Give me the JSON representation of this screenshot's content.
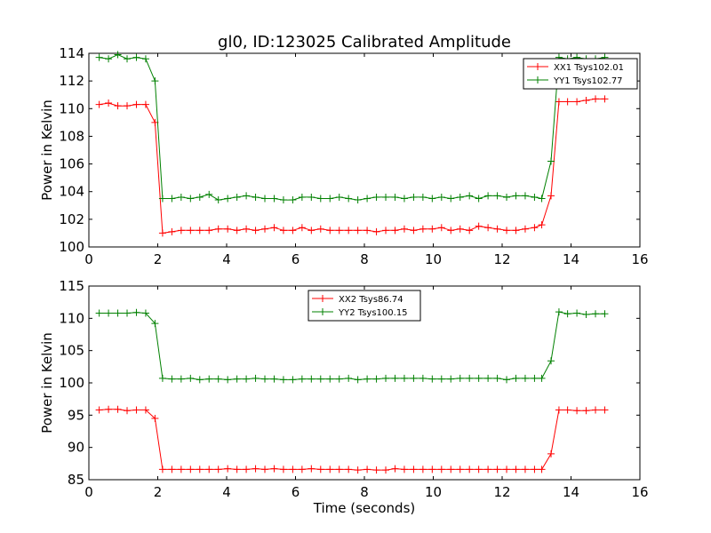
{
  "figure_title": "gl0, ID:123025 Calibrated Amplitude",
  "chart_data": [
    {
      "type": "line",
      "title": "gl0, ID:123025 Calibrated Amplitude",
      "xlabel": "",
      "ylabel": "Power in Kelvin",
      "xlim": [
        0,
        16
      ],
      "ylim": [
        100,
        114
      ],
      "xticks": [
        "0",
        "2",
        "4",
        "6",
        "8",
        "10",
        "12",
        "14",
        "16"
      ],
      "yticks": [
        "100",
        "102",
        "104",
        "106",
        "108",
        "110",
        "112",
        "114"
      ],
      "legend_position": "top-right",
      "grid": false,
      "x": [
        0.3,
        0.57,
        0.84,
        1.11,
        1.38,
        1.65,
        1.92,
        2.14,
        2.41,
        2.68,
        2.95,
        3.22,
        3.49,
        3.76,
        4.03,
        4.3,
        4.57,
        4.84,
        5.11,
        5.38,
        5.65,
        5.92,
        6.19,
        6.46,
        6.73,
        7.0,
        7.27,
        7.54,
        7.81,
        8.08,
        8.35,
        8.62,
        8.89,
        9.16,
        9.43,
        9.7,
        9.97,
        10.24,
        10.51,
        10.78,
        11.05,
        11.32,
        11.59,
        11.86,
        12.13,
        12.4,
        12.67,
        12.94,
        13.15,
        13.42,
        13.65,
        13.9,
        14.17,
        14.44,
        14.71,
        14.98
      ],
      "series": [
        {
          "name": "XX1 Tsys102.01",
          "color": "#ff0000",
          "values": [
            110.3,
            110.4,
            110.2,
            110.2,
            110.3,
            110.3,
            109.0,
            101.0,
            101.1,
            101.2,
            101.2,
            101.2,
            101.2,
            101.3,
            101.3,
            101.2,
            101.3,
            101.2,
            101.3,
            101.4,
            101.2,
            101.2,
            101.4,
            101.2,
            101.3,
            101.2,
            101.2,
            101.2,
            101.2,
            101.2,
            101.1,
            101.2,
            101.2,
            101.3,
            101.2,
            101.3,
            101.3,
            101.4,
            101.2,
            101.3,
            101.2,
            101.5,
            101.4,
            101.3,
            101.2,
            101.2,
            101.3,
            101.4,
            101.6,
            103.7,
            110.5,
            110.5,
            110.5,
            110.6,
            110.7,
            110.7
          ]
        },
        {
          "name": "YY1 Tsys102.77",
          "color": "#008000",
          "values": [
            113.7,
            113.6,
            113.9,
            113.6,
            113.7,
            113.6,
            112.0,
            103.5,
            103.5,
            103.6,
            103.5,
            103.6,
            103.8,
            103.4,
            103.5,
            103.6,
            103.7,
            103.6,
            103.5,
            103.5,
            103.4,
            103.4,
            103.6,
            103.6,
            103.5,
            103.5,
            103.6,
            103.5,
            103.4,
            103.5,
            103.6,
            103.6,
            103.6,
            103.5,
            103.6,
            103.6,
            103.5,
            103.6,
            103.5,
            103.6,
            103.7,
            103.5,
            103.7,
            103.7,
            103.6,
            103.7,
            103.7,
            103.6,
            103.5,
            106.2,
            113.7,
            113.6,
            113.7,
            113.6,
            113.6,
            113.7
          ]
        }
      ]
    },
    {
      "type": "line",
      "title": "",
      "xlabel": "Time (seconds)",
      "ylabel": "Power in Kelvin",
      "xlim": [
        0,
        16
      ],
      "ylim": [
        85,
        115
      ],
      "xticks": [
        "0",
        "2",
        "4",
        "6",
        "8",
        "10",
        "12",
        "14",
        "16"
      ],
      "yticks": [
        "85",
        "90",
        "95",
        "100",
        "105",
        "110",
        "115"
      ],
      "legend_position": "upper-center",
      "grid": false,
      "x": [
        0.3,
        0.57,
        0.84,
        1.11,
        1.38,
        1.65,
        1.92,
        2.14,
        2.41,
        2.68,
        2.95,
        3.22,
        3.49,
        3.76,
        4.03,
        4.3,
        4.57,
        4.84,
        5.11,
        5.38,
        5.65,
        5.92,
        6.19,
        6.46,
        6.73,
        7.0,
        7.27,
        7.54,
        7.81,
        8.08,
        8.35,
        8.62,
        8.89,
        9.16,
        9.43,
        9.7,
        9.97,
        10.24,
        10.51,
        10.78,
        11.05,
        11.32,
        11.59,
        11.86,
        12.13,
        12.4,
        12.67,
        12.94,
        13.15,
        13.42,
        13.65,
        13.9,
        14.17,
        14.44,
        14.71,
        14.98
      ],
      "series": [
        {
          "name": "XX2 Tsys86.74",
          "color": "#ff0000",
          "values": [
            95.8,
            95.9,
            95.9,
            95.7,
            95.8,
            95.8,
            94.5,
            86.6,
            86.6,
            86.6,
            86.6,
            86.6,
            86.6,
            86.6,
            86.7,
            86.6,
            86.6,
            86.7,
            86.6,
            86.7,
            86.6,
            86.6,
            86.6,
            86.7,
            86.6,
            86.6,
            86.6,
            86.6,
            86.5,
            86.6,
            86.5,
            86.5,
            86.7,
            86.6,
            86.6,
            86.6,
            86.6,
            86.6,
            86.6,
            86.6,
            86.6,
            86.6,
            86.6,
            86.6,
            86.6,
            86.6,
            86.6,
            86.6,
            86.6,
            89.0,
            95.8,
            95.8,
            95.7,
            95.7,
            95.8,
            95.8
          ]
        },
        {
          "name": "YY2 Tsys100.15",
          "color": "#008000",
          "values": [
            110.8,
            110.8,
            110.8,
            110.8,
            110.9,
            110.8,
            109.2,
            100.7,
            100.6,
            100.6,
            100.7,
            100.5,
            100.6,
            100.6,
            100.5,
            100.6,
            100.6,
            100.7,
            100.6,
            100.6,
            100.5,
            100.5,
            100.6,
            100.6,
            100.6,
            100.6,
            100.6,
            100.7,
            100.5,
            100.6,
            100.6,
            100.7,
            100.7,
            100.7,
            100.7,
            100.7,
            100.6,
            100.6,
            100.6,
            100.7,
            100.7,
            100.7,
            100.7,
            100.7,
            100.5,
            100.7,
            100.7,
            100.7,
            100.7,
            103.4,
            111.0,
            110.7,
            110.8,
            110.6,
            110.7,
            110.7
          ]
        }
      ]
    }
  ]
}
